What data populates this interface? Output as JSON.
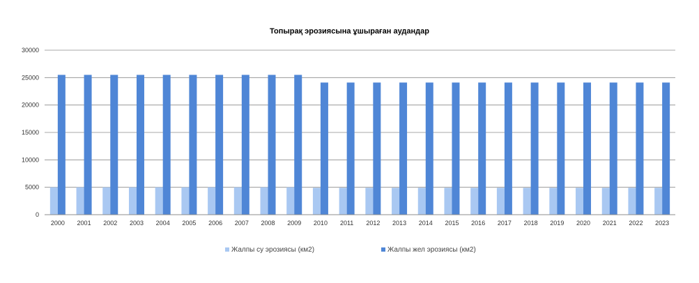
{
  "chart_data": {
    "type": "bar",
    "title": "Топырақ эрозиясына ұшыраған аудандар",
    "categories": [
      "2000",
      "2001",
      "2002",
      "2003",
      "2004",
      "2005",
      "2006",
      "2007",
      "2008",
      "2009",
      "2010",
      "2011",
      "2012",
      "2013",
      "2014",
      "2015",
      "2016",
      "2017",
      "2018",
      "2019",
      "2020",
      "2021",
      "2022",
      "2023"
    ],
    "series": [
      {
        "name": "Жалпы су эрозиясы (км2)",
        "color": "#a9c8f2",
        "values": [
          5000,
          5000,
          5000,
          5000,
          5000,
          5000,
          5000,
          5000,
          5000,
          5000,
          4900,
          4900,
          4900,
          4900,
          4900,
          4900,
          4900,
          4900,
          4900,
          4900,
          4900,
          4900,
          4900,
          4900
        ]
      },
      {
        "name": "Жалпы жел эрозиясы (км2)",
        "color": "#4f86d6",
        "values": [
          25500,
          25500,
          25500,
          25500,
          25500,
          25500,
          25500,
          25500,
          25500,
          25500,
          24100,
          24100,
          24100,
          24100,
          24100,
          24100,
          24100,
          24100,
          24100,
          24100,
          24100,
          24100,
          24100,
          24100
        ]
      }
    ],
    "ylim": [
      0,
      30000
    ],
    "yticks": [
      "0",
      "5000",
      "10000",
      "15000",
      "20000",
      "25000",
      "30000"
    ],
    "grid": true,
    "legend_position": "bottom"
  }
}
